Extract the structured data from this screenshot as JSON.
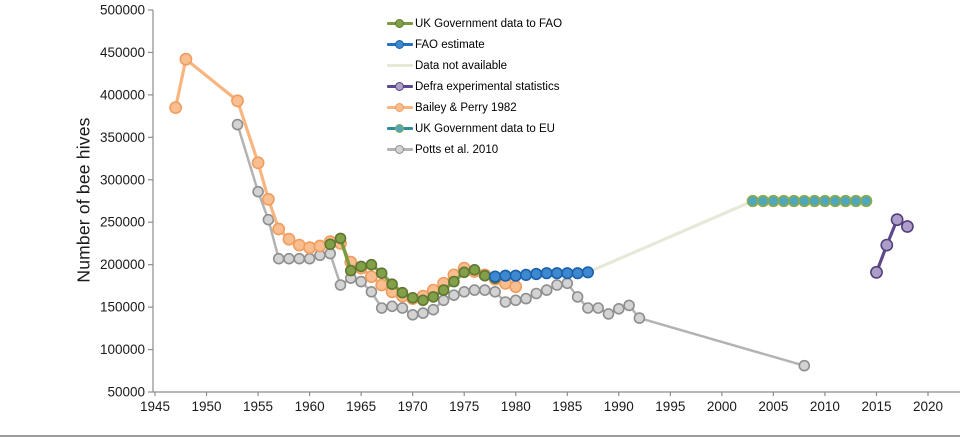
{
  "page": {
    "background_color": "#FFFFFF",
    "bottom_border_color": "#9B9B9B",
    "axis_color": "#8C8C8C",
    "text_color": "#1A1A1A"
  },
  "chart_data": {
    "type": "line",
    "title": "",
    "xlabel": "",
    "ylabel": "Number of bee hives",
    "xlim": [
      1945,
      2020
    ],
    "ylim": [
      50000,
      500000
    ],
    "x_ticks": [
      1945,
      1950,
      1955,
      1960,
      1965,
      1970,
      1975,
      1980,
      1985,
      1990,
      1995,
      2000,
      2005,
      2010,
      2015,
      2020
    ],
    "y_ticks": [
      50000,
      100000,
      150000,
      200000,
      250000,
      300000,
      350000,
      400000,
      450000,
      500000
    ],
    "grid": "off",
    "legend_position": "inside top, left of center",
    "series": [
      {
        "name": "UK Government data to FAO",
        "color": "#7A9A3D",
        "marker_fill": "#82A04A",
        "marker_stroke": "#60772F",
        "marker": true,
        "points": [
          [
            1962,
            224000
          ],
          [
            1963,
            231000
          ],
          [
            1964,
            193000
          ],
          [
            1965,
            198000
          ],
          [
            1966,
            200000
          ],
          [
            1967,
            190000
          ],
          [
            1968,
            177000
          ],
          [
            1969,
            167000
          ],
          [
            1970,
            161000
          ],
          [
            1971,
            158000
          ],
          [
            1972,
            162000
          ],
          [
            1973,
            170000
          ],
          [
            1974,
            180000
          ],
          [
            1975,
            191000
          ],
          [
            1976,
            194000
          ],
          [
            1977,
            187000
          ],
          [
            1978,
            184000
          ]
        ]
      },
      {
        "name": "FAO estimate",
        "color": "#2273C3",
        "marker_fill": "#3E88CF",
        "marker_stroke": "#1A61AC",
        "marker": true,
        "points": [
          [
            1978,
            186000
          ],
          [
            1979,
            187000
          ],
          [
            1980,
            187000
          ],
          [
            1981,
            188000
          ],
          [
            1982,
            189000
          ],
          [
            1983,
            190000
          ],
          [
            1984,
            190000
          ],
          [
            1985,
            190000
          ],
          [
            1986,
            190000
          ],
          [
            1987,
            191000
          ]
        ]
      },
      {
        "name": "Data not available",
        "color": "#E8E8D9",
        "marker_fill": "#E8E8D9",
        "marker_stroke": "#E8E8D9",
        "marker": false,
        "points": [
          [
            1987,
            191000
          ],
          [
            2003,
            275000
          ]
        ]
      },
      {
        "name": "Defra experimental statistics",
        "color": "#5D4889",
        "marker_fill": "#AC9EC9",
        "marker_stroke": "#53407C",
        "marker": true,
        "points": [
          [
            2015,
            191000
          ],
          [
            2016,
            223000
          ],
          [
            2017,
            253000
          ],
          [
            2018,
            245000
          ]
        ]
      },
      {
        "name": "Bailey & Perry 1982",
        "color": "#F9B57F",
        "marker_fill": "#F8BE8F",
        "marker_stroke": "#F09D5F",
        "marker": true,
        "points": [
          [
            1947,
            385000
          ],
          [
            1948,
            442000
          ],
          [
            1953,
            393000
          ],
          [
            1955,
            320000
          ],
          [
            1956,
            277000
          ],
          [
            1957,
            242000
          ],
          [
            1958,
            230000
          ],
          [
            1959,
            223000
          ],
          [
            1960,
            220000
          ],
          [
            1961,
            222000
          ],
          [
            1962,
            227000
          ],
          [
            1963,
            225000
          ],
          [
            1964,
            203000
          ],
          [
            1965,
            196000
          ],
          [
            1966,
            186000
          ],
          [
            1967,
            176000
          ],
          [
            1968,
            168000
          ],
          [
            1969,
            163000
          ],
          [
            1970,
            160000
          ],
          [
            1971,
            163000
          ],
          [
            1972,
            170000
          ],
          [
            1973,
            178000
          ],
          [
            1974,
            188000
          ],
          [
            1975,
            196000
          ],
          [
            1976,
            192000
          ],
          [
            1977,
            188000
          ],
          [
            1978,
            183000
          ],
          [
            1979,
            178000
          ],
          [
            1980,
            174000
          ]
        ]
      },
      {
        "name": "UK Government data to EU",
        "color": "#2F8D9E",
        "marker_fill": "#4EA7BB",
        "marker_stroke": "#8BA94F",
        "marker": true,
        "points": [
          [
            2003,
            275000
          ],
          [
            2004,
            275000
          ],
          [
            2005,
            275000
          ],
          [
            2006,
            275000
          ],
          [
            2007,
            275000
          ],
          [
            2008,
            275000
          ],
          [
            2009,
            275000
          ],
          [
            2010,
            275000
          ],
          [
            2011,
            275000
          ],
          [
            2012,
            275000
          ],
          [
            2013,
            275000
          ],
          [
            2014,
            275000
          ]
        ]
      },
      {
        "name": "Potts et al. 2010",
        "color": "#B3B3B3",
        "marker_fill": "#D3D3D3",
        "marker_stroke": "#8E8E8E",
        "marker": true,
        "points": [
          [
            1953,
            365000
          ],
          [
            1955,
            286000
          ],
          [
            1956,
            253000
          ],
          [
            1957,
            207000
          ],
          [
            1958,
            207000
          ],
          [
            1959,
            207000
          ],
          [
            1960,
            207000
          ],
          [
            1961,
            211000
          ],
          [
            1962,
            213000
          ],
          [
            1963,
            176000
          ],
          [
            1964,
            184000
          ],
          [
            1965,
            180000
          ],
          [
            1966,
            168000
          ],
          [
            1967,
            149000
          ],
          [
            1968,
            151000
          ],
          [
            1969,
            149000
          ],
          [
            1970,
            141000
          ],
          [
            1971,
            143000
          ],
          [
            1972,
            147000
          ],
          [
            1973,
            158000
          ],
          [
            1974,
            164000
          ],
          [
            1975,
            168000
          ],
          [
            1976,
            170000
          ],
          [
            1977,
            170000
          ],
          [
            1978,
            168000
          ],
          [
            1979,
            156000
          ],
          [
            1980,
            158000
          ],
          [
            1981,
            160000
          ],
          [
            1982,
            166000
          ],
          [
            1983,
            170000
          ],
          [
            1984,
            176000
          ],
          [
            1985,
            178000
          ],
          [
            1986,
            162000
          ],
          [
            1987,
            149000
          ],
          [
            1988,
            149000
          ],
          [
            1989,
            142000
          ],
          [
            1990,
            148000
          ],
          [
            1991,
            152000
          ],
          [
            1992,
            137000
          ],
          [
            2008,
            81000
          ]
        ]
      }
    ]
  }
}
